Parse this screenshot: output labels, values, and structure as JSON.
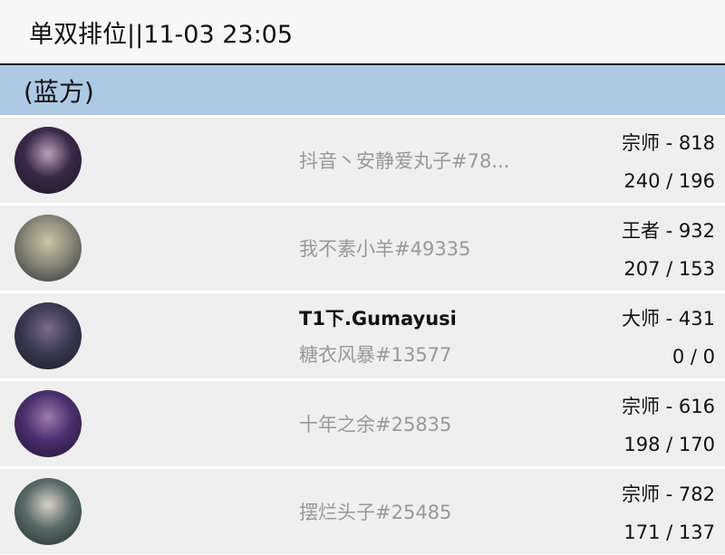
{
  "header": {
    "title": "单双排位||11-03 23:05"
  },
  "team": {
    "label": "(蓝方)"
  },
  "players": [
    {
      "nick": "",
      "id": "抖音丶安静爱丸子#78...",
      "rank": "宗师 - 818",
      "record": "240 / 196",
      "avatar_colors": [
        "#3a2a4a",
        "#b9a0b8",
        "#1c1420"
      ],
      "champion_icon": "champion-portrait-icon"
    },
    {
      "nick": "",
      "id": "我不素小羊#49335",
      "rank": "王者 - 932",
      "record": "207 / 153",
      "avatar_colors": [
        "#8a8778",
        "#c9c4a8",
        "#2c3038"
      ],
      "champion_icon": "champion-portrait-icon"
    },
    {
      "nick": "T1下.Gumayusi",
      "id": "糖衣风暴#13577",
      "rank": "大师 - 431",
      "record": "0 / 0",
      "avatar_colors": [
        "#3b3b52",
        "#7b6a8a",
        "#1a1a24"
      ],
      "champion_icon": "champion-portrait-icon"
    },
    {
      "nick": "",
      "id": "十年之余#25835",
      "rank": "宗师 - 616",
      "record": "198 / 170",
      "avatar_colors": [
        "#4a3070",
        "#a07ab0",
        "#20142c"
      ],
      "champion_icon": "champion-portrait-icon"
    },
    {
      "nick": "",
      "id": "摆烂头子#25485",
      "rank": "宗师 - 782",
      "record": "171 / 137",
      "avatar_colors": [
        "#5a6a6a",
        "#d8d2c8",
        "#1e2a2a"
      ],
      "champion_icon": "champion-portrait-icon"
    }
  ]
}
